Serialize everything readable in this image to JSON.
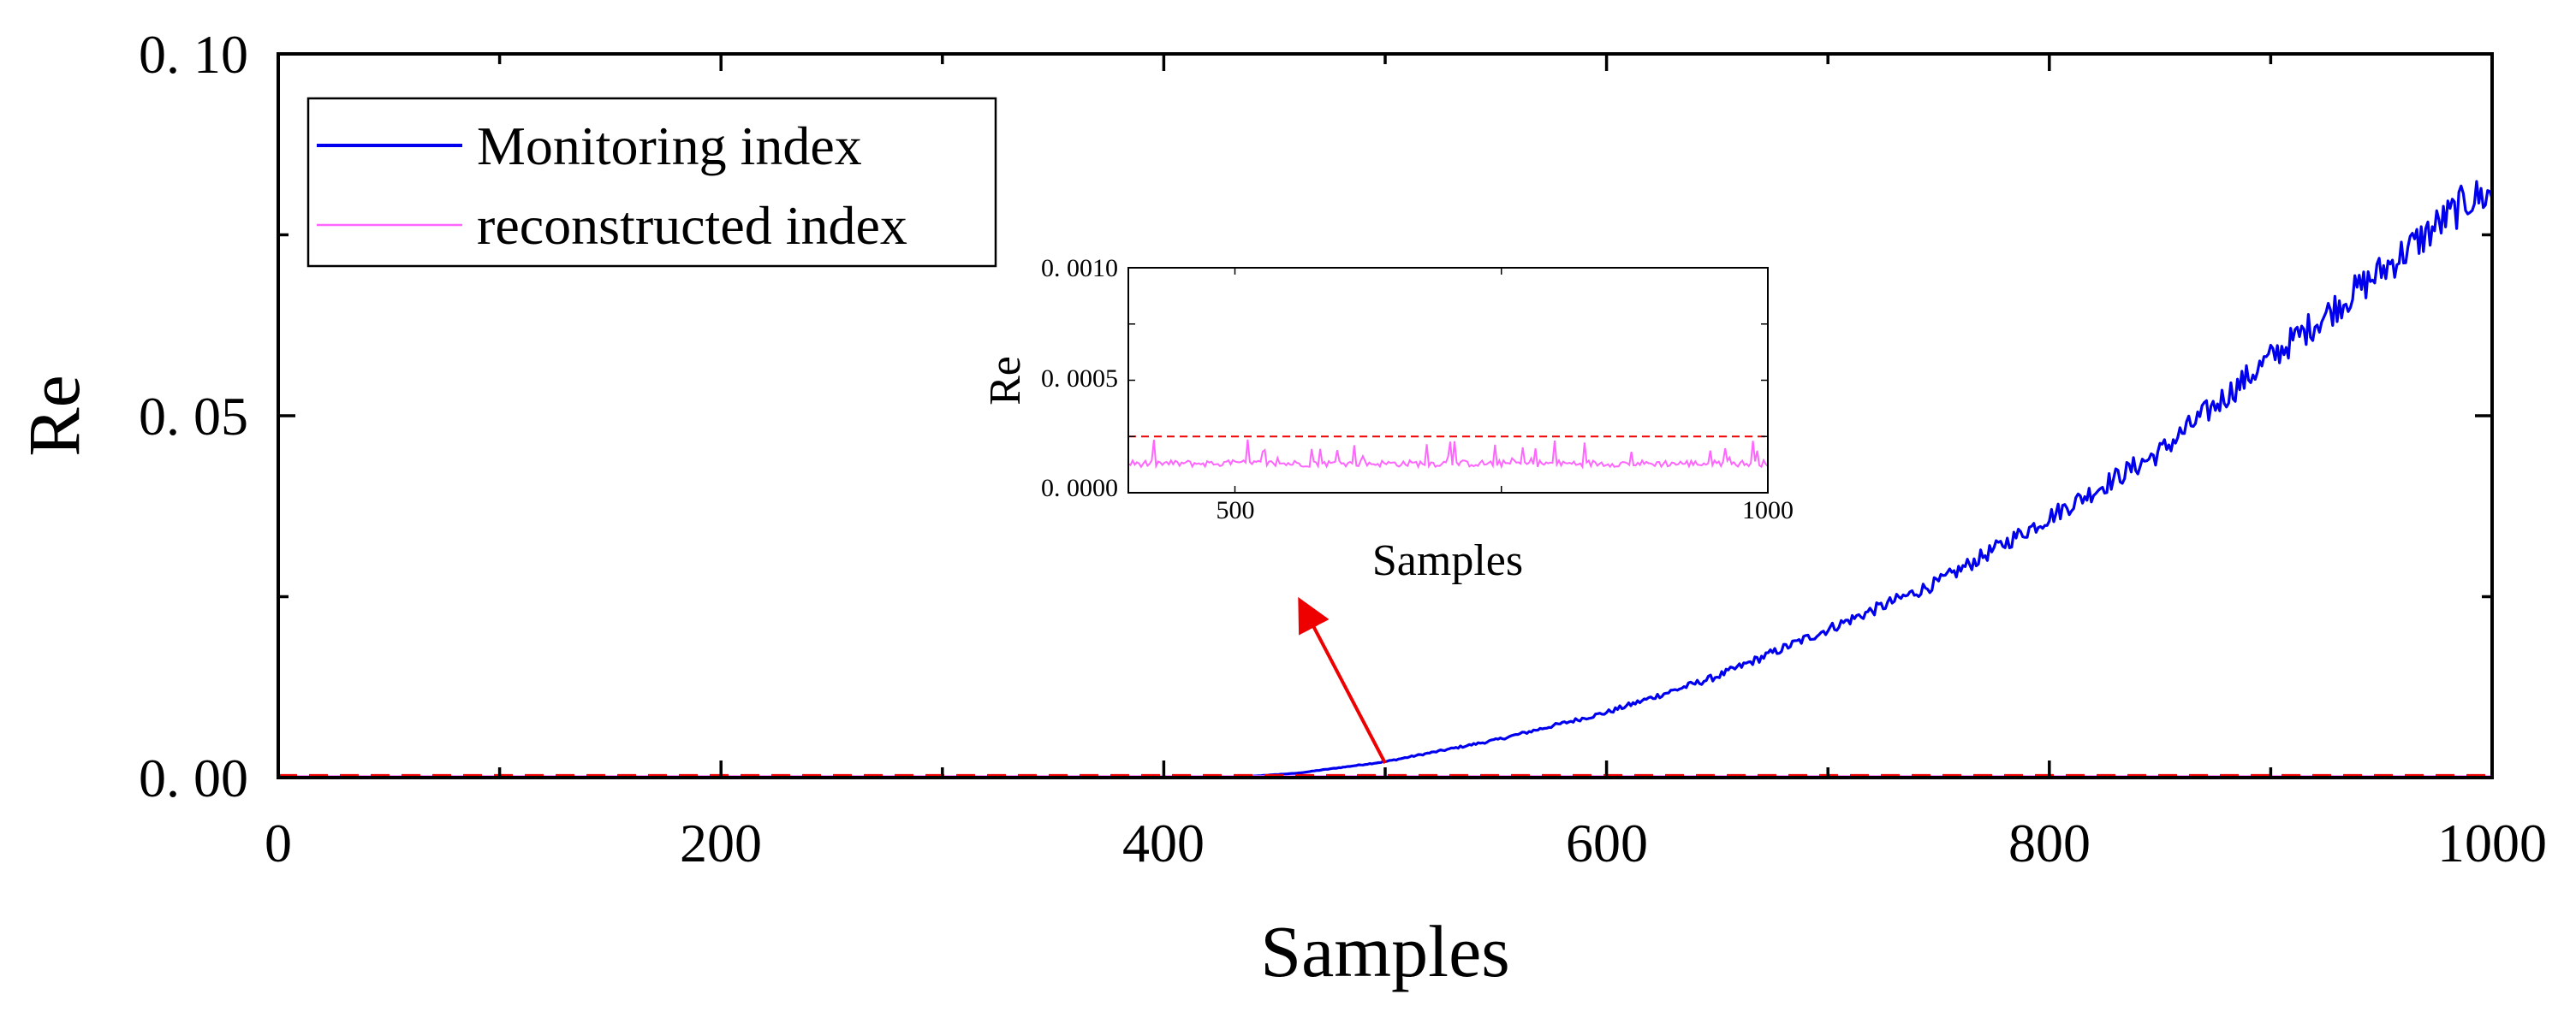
{
  "chart_data": [
    {
      "id": "main",
      "type": "line",
      "xlabel": "Samples",
      "ylabel": "Re",
      "xlim": [
        0,
        1000
      ],
      "ylim": [
        0,
        0.1
      ],
      "xticks": [
        0,
        200,
        400,
        600,
        800,
        1000
      ],
      "xtick_labels": [
        "0",
        "200",
        "400",
        "600",
        "800",
        "1000"
      ],
      "yticks": [
        0,
        0.05,
        0.1
      ],
      "ytick_labels": [
        "0. 00",
        "0. 05",
        "0. 10"
      ],
      "minor_ticks": true,
      "legend": {
        "position": "top-left",
        "entries": [
          "Monitoring index",
          "reconstructed index"
        ]
      },
      "series": [
        {
          "name": "Monitoring index",
          "color": "#0000ee",
          "approx_points": [
            [
              0,
              0.0
            ],
            [
              430,
              0.0
            ],
            [
              460,
              0.0006
            ],
            [
              500,
              0.0022
            ],
            [
              550,
              0.0052
            ],
            [
              600,
              0.009
            ],
            [
              650,
              0.014
            ],
            [
              700,
              0.0205
            ],
            [
              750,
              0.027
            ],
            [
              800,
              0.036
            ],
            [
              850,
              0.045
            ],
            [
              900,
              0.058
            ],
            [
              950,
              0.07
            ],
            [
              990,
              0.08
            ],
            [
              1000,
              0.0805
            ]
          ]
        },
        {
          "name": "reconstructed index",
          "color": "#ff66ff",
          "approx_value": 0.00015
        }
      ],
      "threshold": {
        "value": 0.00025,
        "color": "#ee0000",
        "style": "dashed"
      },
      "annotation": {
        "type": "arrow",
        "color": "#ee0000",
        "from_x": 500,
        "from_y": 0.002
      }
    },
    {
      "id": "inset",
      "type": "line",
      "xlabel": "Samples",
      "ylabel": "Re",
      "xlim": [
        400,
        1000
      ],
      "ylim": [
        0,
        0.001
      ],
      "xticks": [
        500,
        1000
      ],
      "xtick_labels": [
        "500",
        "1000"
      ],
      "yticks": [
        0,
        0.0005,
        0.001
      ],
      "ytick_labels": [
        "0. 0000",
        "0. 0005",
        "0. 0010"
      ],
      "series": [
        {
          "name": "reconstructed index",
          "color": "#ff66ff",
          "baseline": 0.00013,
          "spike_max": 0.00024
        }
      ],
      "threshold": {
        "value": 0.00025,
        "color": "#ee0000",
        "style": "dashed"
      }
    }
  ]
}
